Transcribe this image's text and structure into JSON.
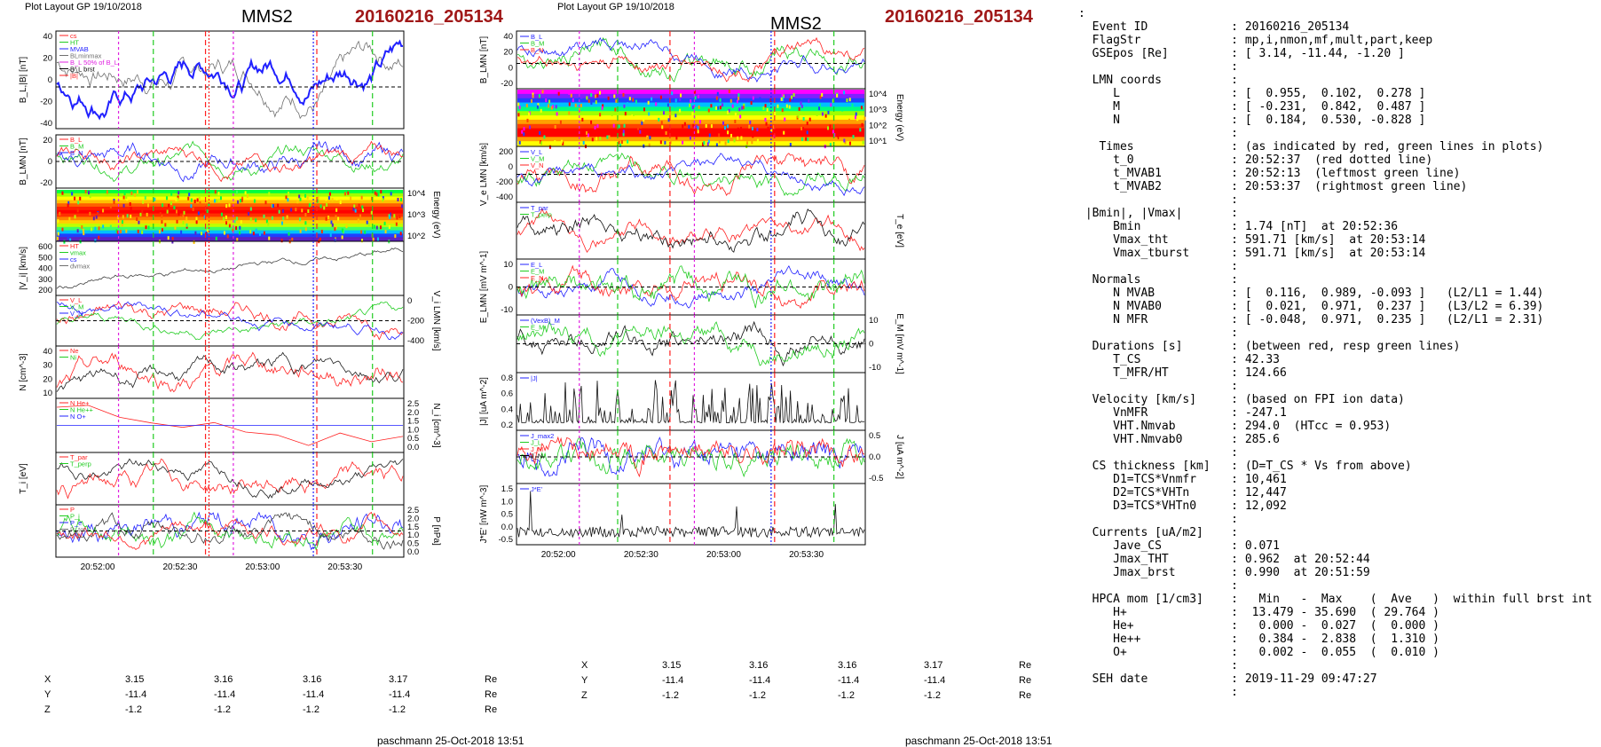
{
  "header": {
    "plot_layout": "Plot Layout GP 19/10/2018",
    "spacecraft": "MMS2",
    "event_id": "20160216_205134"
  },
  "footer": {
    "author": "paschmann 25-Oct-2018 13:51"
  },
  "time_ticks": [
    "20:52:00",
    "20:52:30",
    "20:53:00",
    "20:53:30"
  ],
  "position": {
    "rows": [
      {
        "label": "X",
        "values": [
          "3.15",
          "3.16",
          "3.16",
          "3.17"
        ],
        "unit": "Re"
      },
      {
        "label": "Y",
        "values": [
          "-11.4",
          "-11.4",
          "-11.4",
          "-11.4"
        ],
        "unit": "Re"
      },
      {
        "label": "Z",
        "values": [
          "-1.2",
          "-1.2",
          "-1.2",
          "-1.2"
        ],
        "unit": "Re"
      }
    ],
    "rows_mid": [
      {
        "label": "X",
        "values": [
          "3.15",
          "3.16",
          "3.16",
          "3.17"
        ],
        "unit": "Re"
      },
      {
        "label": "Y",
        "values": [
          "-11.4",
          "-11.4",
          "-11.4",
          "-11.4"
        ],
        "unit": "Re"
      },
      {
        "label": "Z",
        "values": [
          "-1.2",
          "-1.2",
          "-1.2",
          "-1.2"
        ],
        "unit": "Re"
      }
    ]
  },
  "colors": {
    "red": "#ff2020",
    "green": "#20cc20",
    "blue": "#2020ff",
    "magenta": "#e020e0",
    "black": "#000000",
    "gray": "#707070",
    "dark_red": "#a01818"
  },
  "chart_data": [
    {
      "type": "line",
      "panel": "left-1",
      "ylabel": "B_L,|B| [nT]",
      "yticks": [
        "40",
        "20",
        "0",
        "-20",
        "-40"
      ],
      "legend": [
        "cs",
        "HT",
        "MVAB",
        "BLminmax",
        "B_L 50% of B_L",
        "B_L brst",
        "|B|"
      ]
    },
    {
      "type": "line",
      "panel": "left-2",
      "ylabel": "B_LMN [nT]",
      "yticks": [
        "20",
        "0",
        "-20"
      ],
      "legend": [
        "B_L",
        "B_M",
        "B_N"
      ]
    },
    {
      "type": "heatmap",
      "panel": "left-3",
      "ylabel": "Energy (eV)",
      "yticks": [
        "10^4",
        "10^3",
        "10^2"
      ]
    },
    {
      "type": "line",
      "panel": "left-4",
      "ylabel": "|V_i| [km/s]",
      "yticks": [
        "600",
        "500",
        "400",
        "300",
        "200"
      ],
      "legend": [
        "HT",
        "vmax",
        "cs",
        "dvmax"
      ]
    },
    {
      "type": "line",
      "panel": "left-5",
      "ylabel": "V_i LMN [km/s]",
      "yticks": [
        "0",
        "-200",
        "-400"
      ],
      "legend": [
        "V_L",
        "V_M",
        "V_N"
      ]
    },
    {
      "type": "line",
      "panel": "left-6",
      "ylabel": "N [cm^-3]",
      "yticks": [
        "40",
        "30",
        "20",
        "10"
      ],
      "legend": [
        "Ne",
        "Ni"
      ]
    },
    {
      "type": "line",
      "panel": "left-7",
      "ylabel": "N_i [cm^-3]",
      "yticks": [
        "2.5",
        "2.0",
        "1.5",
        "1.0",
        "0.5",
        "0.0"
      ],
      "legend": [
        "N He+",
        "N He++",
        "N O+"
      ]
    },
    {
      "type": "line",
      "panel": "left-8",
      "ylabel": "T_i [eV]",
      "legend": [
        "T_par",
        "T_perp"
      ]
    },
    {
      "type": "line",
      "panel": "left-9",
      "ylabel": "P [nPa]",
      "yticks": [
        "2.5",
        "2.0",
        "1.5",
        "1.0",
        "0.5",
        "0.0"
      ],
      "legend": [
        "P",
        "P_i",
        "P_e",
        "P_tot"
      ]
    },
    {
      "type": "line",
      "panel": "mid-1",
      "ylabel": "B_LMN [nT]",
      "yticks": [
        "40",
        "20",
        "0",
        "-20"
      ],
      "legend": [
        "B_L",
        "B_M",
        "B_N"
      ]
    },
    {
      "type": "heatmap",
      "panel": "mid-2",
      "ylabel": "Energy (eV)",
      "yticks": [
        "10^4",
        "10^3",
        "10^2",
        "10^1"
      ]
    },
    {
      "type": "line",
      "panel": "mid-3",
      "ylabel": "V_e LMN [km/s]",
      "yticks": [
        "200",
        "0",
        "-200",
        "-400"
      ],
      "legend": [
        "V_L",
        "V_M",
        "V_N"
      ]
    },
    {
      "type": "line",
      "panel": "mid-4",
      "ylabel": "T_e [eV]",
      "legend": [
        "T_par",
        "T_perp"
      ]
    },
    {
      "type": "line",
      "panel": "mid-5",
      "ylabel": "E_LMN [mV m^-1]",
      "yticks": [
        "10",
        "0",
        "-10"
      ],
      "legend": [
        "E_L",
        "E_M",
        "E_N"
      ]
    },
    {
      "type": "line",
      "panel": "mid-6",
      "ylabel": "E_M [mV m^-1]",
      "yticks": [
        "10",
        "0",
        "-10"
      ],
      "legend": [
        "(VexB)_M",
        "E_M"
      ]
    },
    {
      "type": "line",
      "panel": "mid-7",
      "ylabel": "|J| [uA m^-2]",
      "yticks": [
        "0.8",
        "0.6",
        "0.4",
        "0.2"
      ],
      "legend": [
        "|J|"
      ]
    },
    {
      "type": "line",
      "panel": "mid-8",
      "ylabel": "J [uA m^-2]",
      "yticks": [
        "0.5",
        "0.0",
        "-0.5"
      ],
      "legend": [
        "J_max2",
        "J_L",
        "J_M",
        "J_N"
      ]
    },
    {
      "type": "line",
      "panel": "mid-9",
      "ylabel": "J*E' [nW m^-3]",
      "yticks": [
        "1.5",
        "1.0",
        "0.5",
        "0.0",
        "-0.5"
      ],
      "legend": [
        "J*E'"
      ]
    }
  ],
  "info_panel": [
    ":",
    "  Event ID            : 20160216_205134",
    "  FlagStr             : mp,i,nmon,mf,mult,part,keep",
    "  GSEpos [Re]         : [ 3.14, -11.44, -1.20 ]",
    "                      :",
    "  LMN coords          :",
    "     L                : [  0.955,  0.102,  0.278 ]",
    "     M                : [ -0.231,  0.842,  0.487 ]",
    "     N                : [  0.184,  0.530, -0.828 ]",
    "                      :",
    "   Times              : (as indicated by red, green lines in plots)",
    "     t_0              : 20:52:37  (red dotted line)",
    "     t_MVAB1          : 20:52:13  (leftmost green line)",
    "     t_MVAB2          : 20:53:37  (rightmost green line)",
    "                      :",
    " |Bmin|, |Vmax|       :",
    "     Bmin             : 1.74 [nT]  at 20:52:36",
    "     Vmax_tht         : 591.71 [km/s]  at 20:53:14",
    "     Vmax_tburst      : 591.71 [km/s]  at 20:53:14",
    "                      :",
    "  Normals             :",
    "     N MVAB           : [  0.116,  0.989, -0.093 ]   (L2/L1 = 1.44)",
    "     N MVAB0          : [  0.021,  0.971,  0.237 ]   (L3/L2 = 6.39)",
    "     N MFR            : [ -0.048,  0.971,  0.235 ]   (L2/L1 = 2.31)",
    "                      :",
    "  Durations [s]       : (between red, resp green lines)",
    "     T_CS             : 42.33",
    "     T_MFR/HT         : 124.66",
    "                      :",
    "  Velocity [km/s]     : (based on FPI ion data)",
    "     VnMFR            : -247.1",
    "     VHT.Nmvab        : 294.0  (HTcc = 0.953)",
    "     VHT.Nmvab0       : 285.6",
    "                      :",
    "  CS thickness [km]   : (D=T_CS * Vs from above)",
    "     D1=TCS*Vnmfr     : 10,461",
    "     D2=TCS*VHTn      : 12,447",
    "     D3=TCS*VHTn0     : 12,092",
    "                      :",
    "  Currents [uA/m2]    :",
    "     Jave_CS          : 0.071",
    "     Jmax_THT         : 0.962  at 20:52:44",
    "     Jmax_brst        : 0.990  at 20:51:59",
    "                      :",
    "  HPCA mom [1/cm3]    :   Min   -  Max    (  Ave   )  within full brst int",
    "     H+               :  13.479 - 35.690  ( 29.764 )",
    "     He+              :   0.000 -  0.027  (  0.000 )",
    "     He++             :   0.384 -  2.838  (  1.310 )",
    "     O+               :   0.002 -  0.055  (  0.010 )",
    "                      :",
    "  SEH date            : 2019-11-29 09:47:27",
    "                      :"
  ]
}
